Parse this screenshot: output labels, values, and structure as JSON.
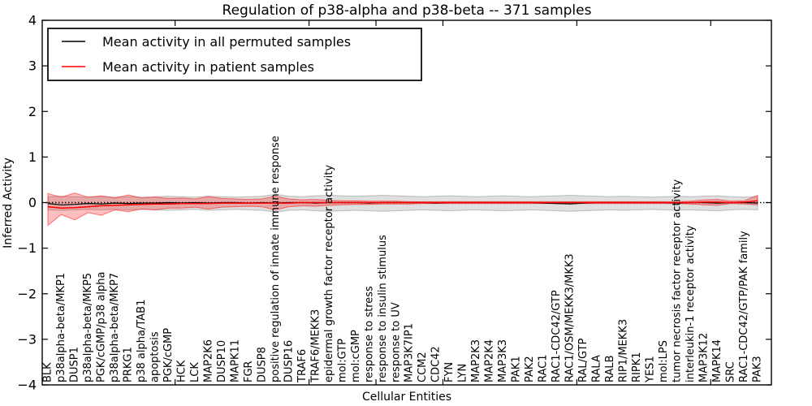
{
  "chart_data": {
    "type": "line",
    "title": "Regulation of p38-alpha and p38-beta -- 371 samples",
    "xlabel": "Cellular Entities",
    "ylabel": "Inferred Activity",
    "ylim": [
      -4,
      4
    ],
    "grid": false,
    "legend_position": "upper left",
    "yticks": {
      "values": [
        4,
        3,
        2,
        1,
        0,
        -1,
        -2,
        -3,
        -4
      ],
      "labels": [
        "4",
        "3",
        "2",
        "1",
        "0",
        "−1",
        "−2",
        "−3",
        "−4"
      ]
    },
    "categories": [
      "BLK",
      "p38alpha-beta/MKP1",
      "DUSP1",
      "p38alpha-beta/MKP5",
      "PGK/cGMP/p38 alpha",
      "p38alpha-beta/MKP7",
      "PRKG1",
      "p38 alpha/TAB1",
      "apoptosis",
      "PGK/cGMP",
      "HCK",
      "LCK",
      "MAP2K6",
      "DUSP10",
      "MAPK11",
      "FGR",
      "DUSP8",
      "positive regulation of innate immune response",
      "DUSP16",
      "TRAF6",
      "TRAF6/MEKK3",
      "epidermal growth factor receptor activity",
      "mol:GTP",
      "mol:cGMP",
      "response to stress",
      "response to insulin stimulus",
      "response to UV",
      "MAP3K7IP1",
      "CCM2",
      "CDC42",
      "FYN",
      "LYN",
      "MAP2K3",
      "MAP2K4",
      "MAP3K3",
      "PAK1",
      "PAK2",
      "RAC1",
      "RAC1-CDC42/GTP",
      "RAC1/OSM/MEKK3/MKK3",
      "RAL/GTP",
      "RALA",
      "RALB",
      "RIP1/MEKK3",
      "RIPK1",
      "YES1",
      "mol:LPS",
      "tumor necrosis factor receptor activity",
      "interleukin-1 receptor activity",
      "MAP3K12",
      "MAPK14",
      "SRC",
      "RAC1-CDC42/GTP/PAK family",
      "PAK3"
    ],
    "series": [
      {
        "name": "Mean activity in all permuted samples",
        "color": "#000000",
        "values": [
          -0.02,
          -0.05,
          -0.04,
          -0.02,
          -0.03,
          -0.01,
          -0.02,
          -0.01,
          -0.01,
          0.0,
          -0.01,
          0.0,
          -0.01,
          0.0,
          0.0,
          -0.01,
          0.0,
          -0.01,
          0.0,
          0.0,
          -0.01,
          0.0,
          0.0,
          0.0,
          -0.01,
          0.0,
          0.0,
          0.0,
          0.0,
          -0.01,
          0.0,
          0.0,
          0.0,
          0.0,
          0.0,
          0.0,
          0.0,
          -0.01,
          -0.02,
          -0.03,
          -0.01,
          0.0,
          0.0,
          0.0,
          0.0,
          0.0,
          0.0,
          -0.01,
          0.0,
          0.0,
          -0.01,
          0.0,
          0.0,
          -0.01
        ]
      },
      {
        "name": "Mean activity in patient samples",
        "color": "#ff0000",
        "values": [
          -0.09,
          -0.12,
          -0.11,
          -0.09,
          -0.07,
          -0.06,
          -0.05,
          -0.04,
          -0.03,
          -0.03,
          -0.02,
          -0.02,
          -0.02,
          -0.01,
          -0.01,
          -0.01,
          -0.01,
          -0.01,
          -0.01,
          0.0,
          0.0,
          0.0,
          0.0,
          0.0,
          0.0,
          0.0,
          0.0,
          0.0,
          0.0,
          0.0,
          0.0,
          0.0,
          0.0,
          0.0,
          0.0,
          0.0,
          0.0,
          0.0,
          0.0,
          0.0,
          0.0,
          0.0,
          0.0,
          0.0,
          0.0,
          0.0,
          0.0,
          0.0,
          0.0,
          0.01,
          0.01,
          0.0,
          0.01,
          0.04
        ]
      }
    ],
    "bands": [
      {
        "name": "permuted-samples-band",
        "fill": "rgba(128,128,128,0.25)",
        "edge": "rgba(110,110,110,0.40)",
        "upper": [
          0.13,
          0.14,
          0.13,
          0.12,
          0.13,
          0.12,
          0.13,
          0.12,
          0.13,
          0.14,
          0.13,
          0.12,
          0.14,
          0.13,
          0.12,
          0.13,
          0.14,
          0.18,
          0.14,
          0.13,
          0.15,
          0.16,
          0.15,
          0.14,
          0.15,
          0.16,
          0.15,
          0.14,
          0.13,
          0.14,
          0.15,
          0.14,
          0.13,
          0.14,
          0.15,
          0.14,
          0.13,
          0.14,
          0.15,
          0.16,
          0.15,
          0.14,
          0.13,
          0.14,
          0.13,
          0.12,
          0.13,
          0.14,
          0.13,
          0.14,
          0.15,
          0.13,
          0.12,
          0.13
        ],
        "lower": [
          -0.16,
          -0.17,
          -0.16,
          -0.15,
          -0.16,
          -0.15,
          -0.16,
          -0.15,
          -0.16,
          -0.17,
          -0.16,
          -0.15,
          -0.17,
          -0.16,
          -0.15,
          -0.16,
          -0.17,
          -0.21,
          -0.17,
          -0.16,
          -0.18,
          -0.19,
          -0.18,
          -0.17,
          -0.18,
          -0.19,
          -0.18,
          -0.17,
          -0.16,
          -0.17,
          -0.18,
          -0.17,
          -0.16,
          -0.17,
          -0.18,
          -0.17,
          -0.16,
          -0.17,
          -0.18,
          -0.19,
          -0.18,
          -0.17,
          -0.16,
          -0.17,
          -0.16,
          -0.15,
          -0.16,
          -0.17,
          -0.16,
          -0.17,
          -0.18,
          -0.16,
          -0.15,
          -0.16
        ]
      },
      {
        "name": "patient-samples-band",
        "fill": "rgba(255,0,0,0.25)",
        "edge": "rgba(255,0,0,0.50)",
        "upper": [
          0.2,
          0.12,
          0.21,
          0.12,
          0.15,
          0.1,
          0.17,
          0.1,
          0.12,
          0.09,
          0.1,
          0.08,
          0.13,
          0.09,
          0.08,
          0.07,
          0.08,
          0.14,
          0.08,
          0.06,
          0.07,
          0.05,
          0.04,
          0.04,
          0.03,
          0.03,
          0.03,
          0.02,
          0.02,
          0.02,
          0.02,
          0.02,
          0.02,
          0.02,
          0.02,
          0.02,
          0.02,
          0.02,
          0.02,
          0.02,
          0.02,
          0.02,
          0.02,
          0.02,
          0.02,
          0.02,
          0.02,
          0.02,
          0.03,
          0.06,
          0.07,
          0.03,
          0.04,
          0.16
        ],
        "lower": [
          -0.5,
          -0.26,
          -0.38,
          -0.22,
          -0.28,
          -0.16,
          -0.2,
          -0.14,
          -0.16,
          -0.12,
          -0.12,
          -0.1,
          -0.14,
          -0.1,
          -0.09,
          -0.08,
          -0.09,
          -0.16,
          -0.09,
          -0.07,
          -0.08,
          -0.06,
          -0.05,
          -0.04,
          -0.04,
          -0.03,
          -0.03,
          -0.03,
          -0.02,
          -0.02,
          -0.02,
          -0.02,
          -0.02,
          -0.02,
          -0.02,
          -0.02,
          -0.02,
          -0.02,
          -0.02,
          -0.02,
          -0.02,
          -0.02,
          -0.02,
          -0.02,
          -0.02,
          -0.02,
          -0.02,
          -0.02,
          -0.03,
          -0.05,
          -0.06,
          -0.02,
          -0.03,
          -0.05
        ]
      }
    ],
    "zero_line": {
      "value": 0,
      "style": "dotted",
      "color": "#000000"
    }
  },
  "legend": {
    "items": [
      {
        "label": "Mean activity in all permuted samples",
        "color": "#000000"
      },
      {
        "label": "Mean activity in patient samples",
        "color": "#ff0000"
      }
    ]
  }
}
